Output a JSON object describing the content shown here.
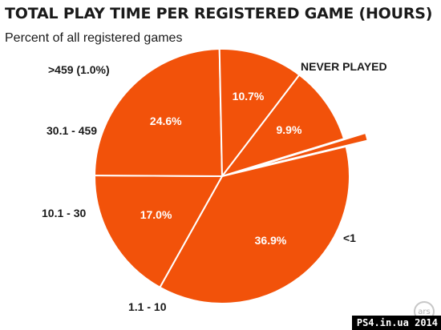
{
  "chart_data": {
    "type": "pie",
    "title": "TOTAL PLAY TIME PER REGISTERED GAME (HOURS)",
    "subtitle": "Percent of all registered games",
    "slices": [
      {
        "label": "NEVER PLAYED",
        "value": 36.9,
        "value_label": "36.9%"
      },
      {
        "label": "<1",
        "value": 17.0,
        "value_label": "17.0%"
      },
      {
        "label": "1.1 - 10",
        "value": 24.6,
        "value_label": "24.6%"
      },
      {
        "label": "10.1 - 30",
        "value": 10.7,
        "value_label": "10.7%"
      },
      {
        "label": "30.1 - 459",
        "value": 9.9,
        "value_label": "9.9%"
      },
      {
        "label": ">459 (1.0%)",
        "value": 1.0,
        "value_label": "",
        "exploded": true
      }
    ],
    "colors": {
      "slice_fill": "#f2520a",
      "slice_stroke": "#ffffff",
      "label_text": "#1a1a1a",
      "value_text": "#ffffff"
    }
  },
  "branding": {
    "logo_text": "ars",
    "watermark": "PS4.in.ua  2014"
  }
}
